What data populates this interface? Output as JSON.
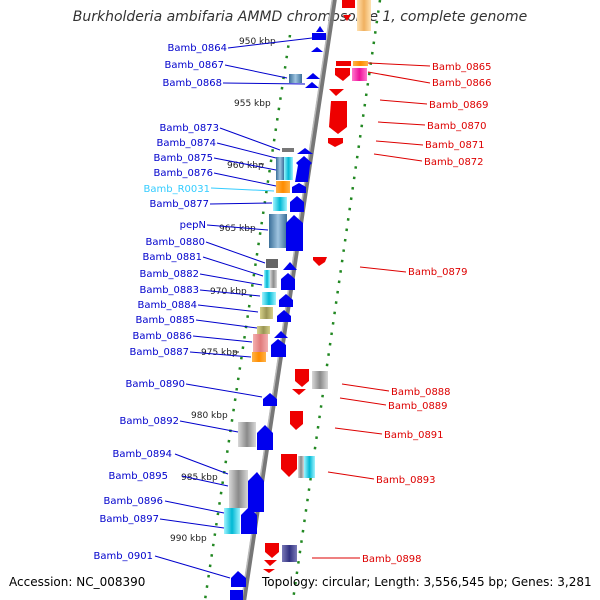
{
  "header": {
    "title": "Burkholderia ambifaria AMMD chromosome 1, complete genome"
  },
  "footer": {
    "accession": "Accession: NC_008390",
    "summary": "Topology: circular; Length: 3,556,545 bp; Genes: 3,281"
  },
  "colors": {
    "left_label": "#0000cc",
    "left_label_rna": "#33ccff",
    "right_label": "#dd0000",
    "backbone": "#888888",
    "tick": "#228822"
  },
  "kbp_ticks": [
    "950 kbp",
    "955 kbp",
    "960 kbp",
    "965 kbp",
    "970 kbp",
    "975 kbp",
    "980 kbp",
    "985 kbp",
    "990 kbp"
  ],
  "left_genes": [
    {
      "name": "Bamb_0864"
    },
    {
      "name": "Bamb_0867"
    },
    {
      "name": "Bamb_0868"
    },
    {
      "name": "Bamb_0873"
    },
    {
      "name": "Bamb_0874"
    },
    {
      "name": "Bamb_0875"
    },
    {
      "name": "Bamb_0876"
    },
    {
      "name": "Bamb_R0031"
    },
    {
      "name": "Bamb_0877"
    },
    {
      "name": "pepN"
    },
    {
      "name": "Bamb_0880"
    },
    {
      "name": "Bamb_0881"
    },
    {
      "name": "Bamb_0882"
    },
    {
      "name": "Bamb_0883"
    },
    {
      "name": "Bamb_0884"
    },
    {
      "name": "Bamb_0885"
    },
    {
      "name": "Bamb_0886"
    },
    {
      "name": "Bamb_0887"
    },
    {
      "name": "Bamb_0890"
    },
    {
      "name": "Bamb_0892"
    },
    {
      "name": "Bamb_0894"
    },
    {
      "name": "Bamb_0895"
    },
    {
      "name": "Bamb_0896"
    },
    {
      "name": "Bamb_0897"
    },
    {
      "name": "Bamb_0901"
    }
  ],
  "right_genes": [
    {
      "name": "Bamb_0865"
    },
    {
      "name": "Bamb_0866"
    },
    {
      "name": "Bamb_0869"
    },
    {
      "name": "Bamb_0870"
    },
    {
      "name": "Bamb_0871"
    },
    {
      "name": "Bamb_0872"
    },
    {
      "name": "Bamb_0879"
    },
    {
      "name": "Bamb_0888"
    },
    {
      "name": "Bamb_0889"
    },
    {
      "name": "Bamb_0891"
    },
    {
      "name": "Bamb_0893"
    },
    {
      "name": "Bamb_0898"
    }
  ]
}
